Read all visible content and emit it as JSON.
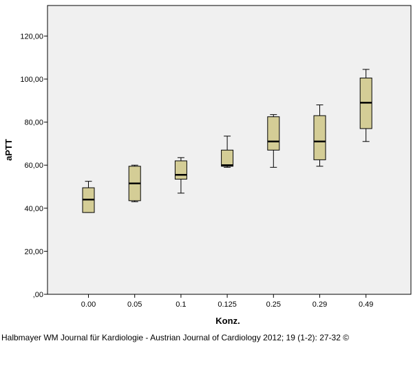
{
  "chart_data": {
    "type": "box",
    "title": "",
    "xlabel": "Konz.",
    "ylabel": "aPTT",
    "ylim": [
      0,
      135
    ],
    "yticks": [
      0,
      20,
      40,
      60,
      80,
      100,
      120
    ],
    "ytick_labels": [
      ",00",
      "20,00",
      "40,00",
      "60,00",
      "80,00",
      "100,00",
      "120,00"
    ],
    "categories": [
      "0.00",
      "0.05",
      "0.1",
      "0.125",
      "0.25",
      "0.29",
      "0.49"
    ],
    "boxes": [
      {
        "category": "0.00",
        "min": 38,
        "q1": 38,
        "median": 44,
        "q3": 49.5,
        "max": 52.5
      },
      {
        "category": "0.05",
        "min": 43,
        "q1": 43.5,
        "median": 51.5,
        "q3": 59.5,
        "max": 60
      },
      {
        "category": "0.1",
        "min": 47,
        "q1": 53.5,
        "median": 55.5,
        "q3": 62,
        "max": 63.5
      },
      {
        "category": "0.125",
        "min": 59,
        "q1": 59.5,
        "median": 60,
        "q3": 67,
        "max": 73.5
      },
      {
        "category": "0.25",
        "min": 59,
        "q1": 67,
        "median": 71,
        "q3": 82.5,
        "max": 83.5
      },
      {
        "category": "0.29",
        "min": 59.5,
        "q1": 62.5,
        "median": 71,
        "q3": 83,
        "max": 88
      },
      {
        "category": "0.49",
        "min": 71,
        "q1": 77,
        "median": 89,
        "q3": 100.5,
        "max": 104.5
      }
    ],
    "colors": {
      "plot_bg": "#f0f0f0",
      "box_fill": "#d4cd96",
      "stroke": "#000000"
    },
    "grid": false,
    "legend": "none"
  },
  "credit": "Halbmayer WM Journal für Kardiologie - Austrian Journal of Cardiology 2012; 19 (1-2): 27-32 ©"
}
